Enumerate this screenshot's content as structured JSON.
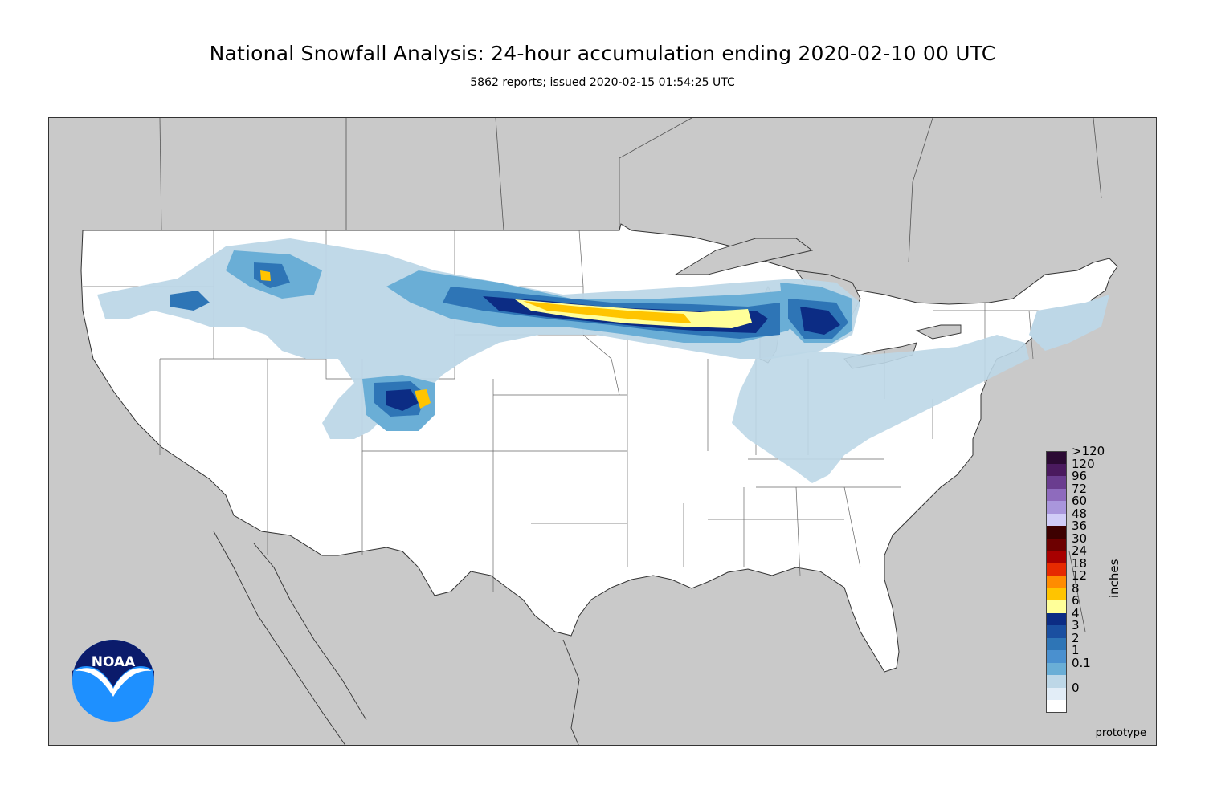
{
  "title": "National Snowfall Analysis: 24-hour accumulation ending 2020-02-10 00 UTC",
  "subtitle": "5862 reports; issued 2020-02-15 01:54:25 UTC",
  "map": {
    "region": "Contiguous United States",
    "background_land_color": "#c9c9c9",
    "us_fill_color": "#ffffff",
    "border_color": "#555555",
    "footer_label": "prototype"
  },
  "legend": {
    "units": "inches",
    "levels": [
      {
        "label": ">120",
        "color": "#2b0a33"
      },
      {
        "label": "120",
        "color": "#4a1a5e"
      },
      {
        "label": "96",
        "color": "#6a3d8f"
      },
      {
        "label": "72",
        "color": "#8e6bbd"
      },
      {
        "label": "60",
        "color": "#a996dc"
      },
      {
        "label": "48",
        "color": "#d0ccf7"
      },
      {
        "label": "36",
        "color": "#3d0000"
      },
      {
        "label": "30",
        "color": "#6d0000"
      },
      {
        "label": "24",
        "color": "#a80000"
      },
      {
        "label": "18",
        "color": "#e62a00"
      },
      {
        "label": "12",
        "color": "#ff8c00"
      },
      {
        "label": "8",
        "color": "#ffc400"
      },
      {
        "label": "6",
        "color": "#ffff99"
      },
      {
        "label": "4",
        "color": "#0c2c84"
      },
      {
        "label": "3",
        "color": "#1a4fa0"
      },
      {
        "label": "2",
        "color": "#2e75b6"
      },
      {
        "label": "1",
        "color": "#4a90cf"
      },
      {
        "label": "0.1",
        "color": "#6aaed6"
      },
      {
        "label": "",
        "color": "#bdd7e7"
      },
      {
        "label": "0",
        "color": "#e2edf7"
      }
    ],
    "bottom_color": "#ffffff"
  },
  "logo": {
    "text": "NOAA",
    "icon": "noaa-logo-icon",
    "colors": {
      "dark": "#0b1b6b",
      "light": "#1e90ff"
    }
  }
}
